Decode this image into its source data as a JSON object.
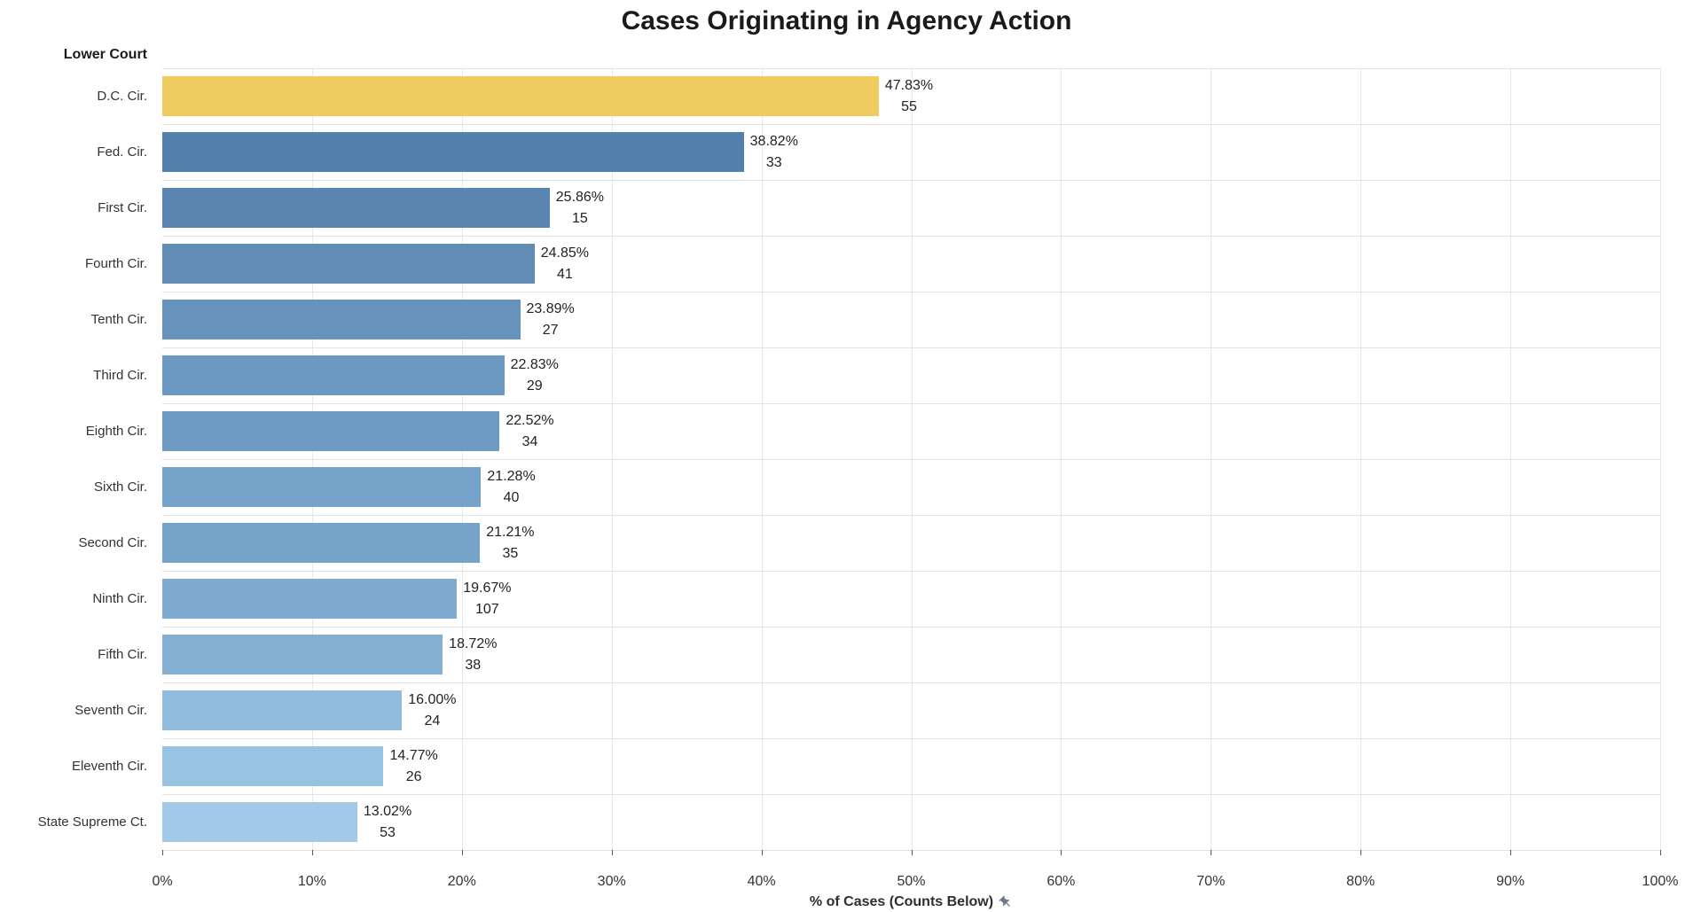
{
  "title": "Cases Originating in Agency Action",
  "axis": {
    "row_header": "Lower Court",
    "x_caption": "% of Cases (Counts Below)",
    "x_ticks": [
      "0%",
      "10%",
      "20%",
      "30%",
      "40%",
      "50%",
      "60%",
      "70%",
      "80%",
      "90%",
      "100%"
    ]
  },
  "colors": {
    "highlight": "#EFCB60",
    "gridline": "#E8E8E8",
    "row_divider": "#E4E4E4",
    "pin_icon": "#6E7A87",
    "title_text": "#1A1A1A",
    "label_text": "#333333"
  },
  "chart_data": {
    "type": "bar",
    "orientation": "horizontal",
    "title": "Cases Originating in Agency Action",
    "xlabel": "% of Cases (Counts Below)",
    "ylabel": "Lower Court",
    "xlim": [
      0,
      100
    ],
    "x_tick_step": 10,
    "grid": true,
    "legend": false,
    "categories": [
      "D.C. Cir.",
      "Fed. Cir.",
      "First Cir.",
      "Fourth Cir.",
      "Tenth Cir.",
      "Third Cir.",
      "Eighth Cir.",
      "Sixth Cir.",
      "Second Cir.",
      "Ninth Cir.",
      "Fifth Cir.",
      "Seventh Cir.",
      "Eleventh Cir.",
      "State Supreme Ct."
    ],
    "series": [
      {
        "name": "% of Cases",
        "values": [
          47.83,
          38.82,
          25.86,
          24.85,
          23.89,
          22.83,
          22.52,
          21.28,
          21.21,
          19.67,
          18.72,
          16.0,
          14.77,
          13.02
        ]
      },
      {
        "name": "Count",
        "values": [
          55,
          33,
          15,
          41,
          27,
          29,
          34,
          40,
          35,
          107,
          38,
          24,
          26,
          53
        ]
      }
    ],
    "bars": [
      {
        "label": "D.C. Cir.",
        "pct": 47.83,
        "pct_label": "47.83%",
        "count": "55",
        "color": "#EFCB60"
      },
      {
        "label": "Fed. Cir.",
        "pct": 38.82,
        "pct_label": "38.82%",
        "count": "33",
        "color": "#5480AE"
      },
      {
        "label": "First Cir.",
        "pct": 25.86,
        "pct_label": "25.86%",
        "count": "15",
        "color": "#5A85B1"
      },
      {
        "label": "Fourth Cir.",
        "pct": 24.85,
        "pct_label": "24.85%",
        "count": "41",
        "color": "#608CB6"
      },
      {
        "label": "Tenth Cir.",
        "pct": 23.89,
        "pct_label": "23.89%",
        "count": "27",
        "color": "#6692BB"
      },
      {
        "label": "Third Cir.",
        "pct": 22.83,
        "pct_label": "22.83%",
        "count": "29",
        "color": "#6C99C1"
      },
      {
        "label": "Eighth Cir.",
        "pct": 22.52,
        "pct_label": "22.52%",
        "count": "34",
        "color": "#6E9BC3"
      },
      {
        "label": "Sixth Cir.",
        "pct": 21.28,
        "pct_label": "21.28%",
        "count": "40",
        "color": "#75A3C9"
      },
      {
        "label": "Second Cir.",
        "pct": 21.21,
        "pct_label": "21.21%",
        "count": "35",
        "color": "#76A3C9"
      },
      {
        "label": "Ninth Cir.",
        "pct": 19.67,
        "pct_label": "19.67%",
        "count": "107",
        "color": "#7EABCF"
      },
      {
        "label": "Fifth Cir.",
        "pct": 18.72,
        "pct_label": "18.72%",
        "count": "38",
        "color": "#83AFD3"
      },
      {
        "label": "Seventh Cir.",
        "pct": 16.0,
        "pct_label": "16.00%",
        "count": "24",
        "color": "#92BCDD"
      },
      {
        "label": "Eleventh Cir.",
        "pct": 14.77,
        "pct_label": "14.77%",
        "count": "26",
        "color": "#98C2E1"
      },
      {
        "label": "State Supreme Ct.",
        "pct": 13.02,
        "pct_label": "13.02%",
        "count": "53",
        "color": "#A2CAE8"
      }
    ]
  }
}
